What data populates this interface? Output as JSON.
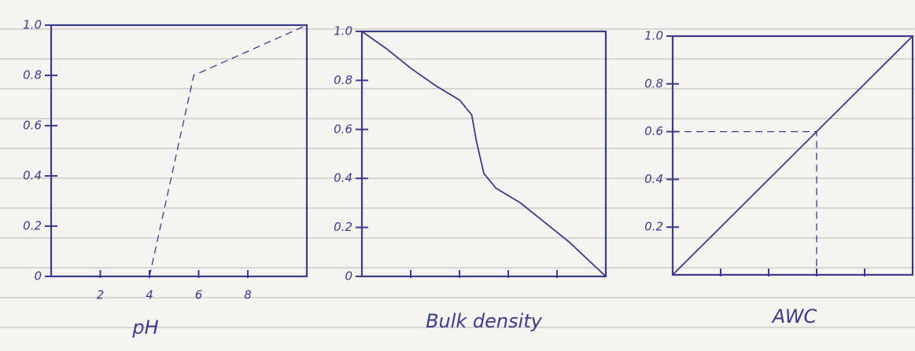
{
  "chart_data": [
    {
      "type": "line",
      "x_label": "pH",
      "color": "#3b3a8c",
      "xlim": [
        0,
        10.4
      ],
      "xticks": [
        2,
        4,
        6,
        8
      ],
      "show_xtick_labels": true,
      "ylim": [
        0,
        1
      ],
      "yticks": [
        0,
        0.2,
        0.4,
        0.6,
        0.8,
        {
          "value": 1,
          "label": "1.0"
        }
      ],
      "series": [
        {
          "x": [
            4,
            5.8,
            10.4
          ],
          "values": [
            0,
            0.8,
            1
          ],
          "dashed": true,
          "color": "#3b3a8c"
        }
      ]
    },
    {
      "type": "line",
      "x_label": "Bulk density",
      "color": "#3b3a8c",
      "xlim": [
        0,
        1
      ],
      "xticks": [
        0.2,
        0.4,
        0.6,
        0.8
      ],
      "show_xtick_labels": false,
      "ylim": [
        0,
        1
      ],
      "yticks": [
        0,
        0.2,
        0.4,
        0.6,
        0.8,
        {
          "value": 1,
          "label": "1.0"
        }
      ],
      "series": [
        {
          "x": [
            0,
            0.1,
            0.2,
            0.3,
            0.4,
            0.45,
            0.47,
            0.5,
            0.55,
            0.65,
            0.75,
            0.85,
            1
          ],
          "values": [
            1,
            0.93,
            0.85,
            0.78,
            0.72,
            0.66,
            0.55,
            0.42,
            0.36,
            0.3,
            0.22,
            0.14,
            0
          ],
          "dashed": false,
          "color": "#3b3a8c"
        }
      ]
    },
    {
      "type": "line",
      "x_label": "AWC",
      "color": "#3b3a8c",
      "xlim": [
        0,
        1
      ],
      "xticks": [
        0.2,
        0.4,
        0.6,
        0.8
      ],
      "show_xtick_labels": false,
      "ylim": [
        0,
        1
      ],
      "yticks": [
        0.2,
        0.4,
        0.6,
        0.8,
        {
          "value": 1,
          "label": "1.0"
        }
      ],
      "series": [
        {
          "x": [
            0,
            1
          ],
          "values": [
            0,
            1
          ],
          "dashed": false,
          "color": "#3b3a8c"
        },
        {
          "x": [
            0,
            0.6,
            0.6
          ],
          "values": [
            0.6,
            0.6,
            0
          ],
          "dashed": true,
          "color": "#3b3a8c"
        }
      ]
    }
  ]
}
